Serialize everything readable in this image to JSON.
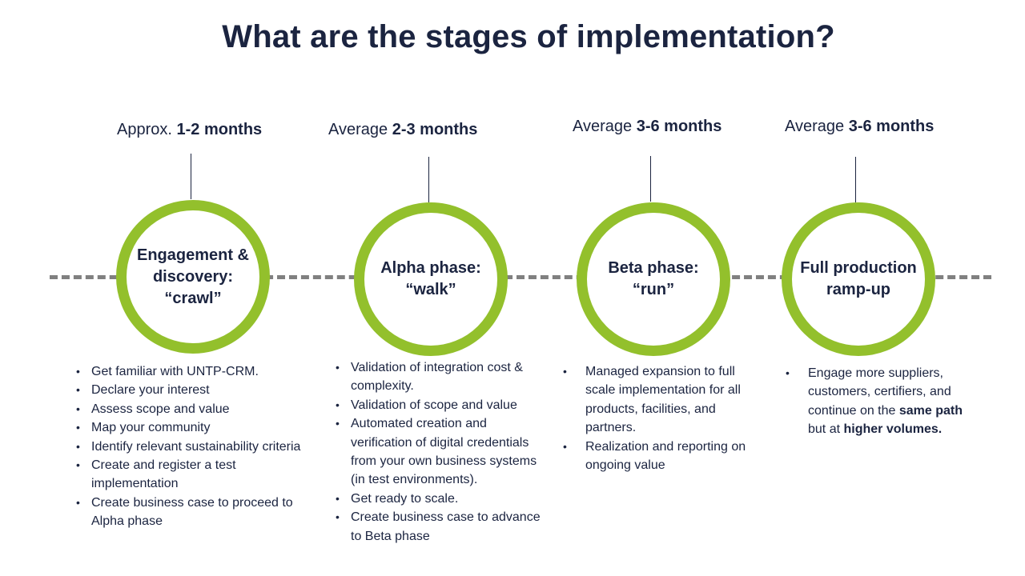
{
  "title": "What are the stages of implementation?",
  "stages": [
    {
      "duration_prefix": "Approx.",
      "duration_value": "1-2 months",
      "name": "Engagement &\ndiscovery:\n“crawl”",
      "bullets": [
        "Get familiar with UNTP-CRM.",
        "Declare your interest",
        "Assess scope and value",
        "Map your community",
        "Identify relevant sustainability criteria",
        "Create and register a test implementation",
        "Create business case to proceed to Alpha phase"
      ]
    },
    {
      "duration_prefix": "Average",
      "duration_value": "2-3 months",
      "name": "Alpha phase:\n“walk”",
      "bullets": [
        "Validation of integration cost & complexity.",
        "Validation of scope and value",
        "Automated creation and verification of digital credentials from your own business systems (in test environments).",
        "Get ready to scale.",
        "Create business case to advance to Beta phase"
      ]
    },
    {
      "duration_prefix": "Average",
      "duration_value": "3-6 months",
      "name": "Beta phase:\n“run”",
      "bullets": [
        "Managed expansion to full scale implementation for all products, facilities, and partners.",
        "Realization and reporting on ongoing value"
      ]
    },
    {
      "duration_prefix": "Average",
      "duration_value": "3-6 months",
      "name": "Full production\nramp-up",
      "bullet": {
        "before": "Engage more suppliers, customers, certifiers, and continue on the",
        "bold1": "same path",
        "middle": "but at",
        "bold2": "higher volumes."
      }
    }
  ]
}
